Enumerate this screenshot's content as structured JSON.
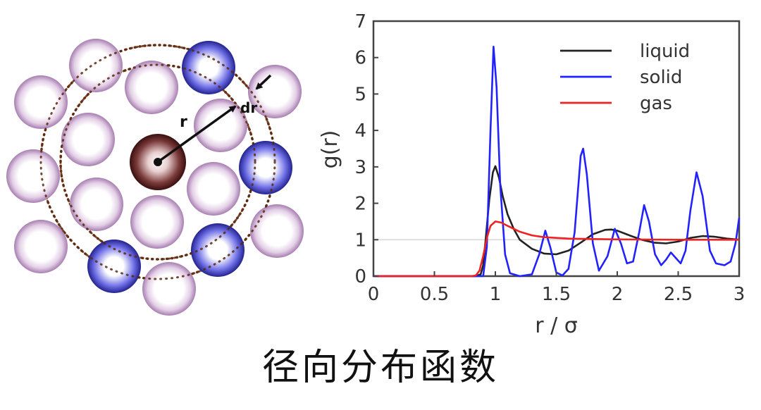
{
  "diagram": {
    "r_label": "r",
    "dr_label": "dr"
  },
  "chart_data": {
    "type": "line",
    "xlabel": "r / σ",
    "ylabel": "g(r)",
    "xlim": [
      0,
      3
    ],
    "ylim": [
      0,
      7
    ],
    "xticks": [
      0,
      0.5,
      1,
      1.5,
      2,
      2.5,
      3
    ],
    "xtick_labels": [
      "0",
      "0.5",
      "1",
      "1.5",
      "2",
      "2.5",
      "3"
    ],
    "yticks": [
      0,
      1,
      2,
      3,
      4,
      5,
      6,
      7
    ],
    "ytick_labels": [
      "0",
      "1",
      "2",
      "3",
      "4",
      "5",
      "6",
      "7"
    ],
    "reference_line_y": 1,
    "legend_position": "top-right",
    "series": [
      {
        "name": "liquid",
        "color": "#222222",
        "points": [
          [
            0,
            0
          ],
          [
            0.84,
            0
          ],
          [
            0.88,
            0.05
          ],
          [
            0.9,
            0.3
          ],
          [
            0.92,
            1.0
          ],
          [
            0.95,
            2.1
          ],
          [
            0.98,
            2.85
          ],
          [
            1.0,
            3.02
          ],
          [
            1.03,
            2.7
          ],
          [
            1.06,
            2.2
          ],
          [
            1.1,
            1.7
          ],
          [
            1.15,
            1.3
          ],
          [
            1.2,
            1.0
          ],
          [
            1.3,
            0.75
          ],
          [
            1.4,
            0.62
          ],
          [
            1.5,
            0.6
          ],
          [
            1.6,
            0.7
          ],
          [
            1.7,
            0.92
          ],
          [
            1.8,
            1.15
          ],
          [
            1.9,
            1.27
          ],
          [
            1.95,
            1.28
          ],
          [
            2.0,
            1.25
          ],
          [
            2.1,
            1.12
          ],
          [
            2.2,
            1.0
          ],
          [
            2.3,
            0.92
          ],
          [
            2.4,
            0.9
          ],
          [
            2.5,
            0.95
          ],
          [
            2.6,
            1.05
          ],
          [
            2.7,
            1.1
          ],
          [
            2.8,
            1.08
          ],
          [
            2.9,
            1.03
          ],
          [
            3.0,
            1.0
          ]
        ]
      },
      {
        "name": "solid",
        "color": "#2222ff",
        "points": [
          [
            0,
            0
          ],
          [
            0.9,
            0
          ],
          [
            0.93,
            0.8
          ],
          [
            0.96,
            4.0
          ],
          [
            0.985,
            6.3
          ],
          [
            1.01,
            5.2
          ],
          [
            1.04,
            2.5
          ],
          [
            1.08,
            0.6
          ],
          [
            1.12,
            0.08
          ],
          [
            1.2,
            0
          ],
          [
            1.3,
            0.05
          ],
          [
            1.36,
            0.6
          ],
          [
            1.41,
            1.25
          ],
          [
            1.45,
            0.8
          ],
          [
            1.5,
            0.1
          ],
          [
            1.55,
            0.02
          ],
          [
            1.6,
            0.2
          ],
          [
            1.65,
            1.2
          ],
          [
            1.7,
            3.3
          ],
          [
            1.72,
            3.5
          ],
          [
            1.75,
            2.8
          ],
          [
            1.8,
            0.9
          ],
          [
            1.85,
            0.15
          ],
          [
            1.92,
            0.55
          ],
          [
            1.98,
            1.3
          ],
          [
            2.03,
            0.9
          ],
          [
            2.08,
            0.35
          ],
          [
            2.13,
            0.4
          ],
          [
            2.18,
            1.2
          ],
          [
            2.22,
            1.95
          ],
          [
            2.26,
            1.5
          ],
          [
            2.31,
            0.6
          ],
          [
            2.36,
            0.3
          ],
          [
            2.4,
            0.45
          ],
          [
            2.44,
            0.65
          ],
          [
            2.48,
            0.5
          ],
          [
            2.52,
            0.35
          ],
          [
            2.56,
            0.7
          ],
          [
            2.6,
            1.8
          ],
          [
            2.65,
            2.85
          ],
          [
            2.7,
            2.2
          ],
          [
            2.76,
            0.7
          ],
          [
            2.81,
            0.35
          ],
          [
            2.88,
            0.3
          ],
          [
            2.93,
            0.4
          ],
          [
            2.97,
            0.9
          ],
          [
            3.0,
            1.6
          ]
        ]
      },
      {
        "name": "gas",
        "color": "#ee2222",
        "points": [
          [
            0,
            0
          ],
          [
            0.8,
            0
          ],
          [
            0.84,
            0.02
          ],
          [
            0.87,
            0.15
          ],
          [
            0.9,
            0.55
          ],
          [
            0.93,
            1.05
          ],
          [
            0.96,
            1.38
          ],
          [
            1.0,
            1.5
          ],
          [
            1.05,
            1.47
          ],
          [
            1.1,
            1.38
          ],
          [
            1.2,
            1.22
          ],
          [
            1.3,
            1.12
          ],
          [
            1.4,
            1.07
          ],
          [
            1.6,
            1.03
          ],
          [
            1.8,
            1.02
          ],
          [
            2.0,
            1.01
          ],
          [
            2.5,
            1.0
          ],
          [
            3.0,
            1.0
          ]
        ]
      }
    ]
  },
  "caption": "径向分布函数"
}
